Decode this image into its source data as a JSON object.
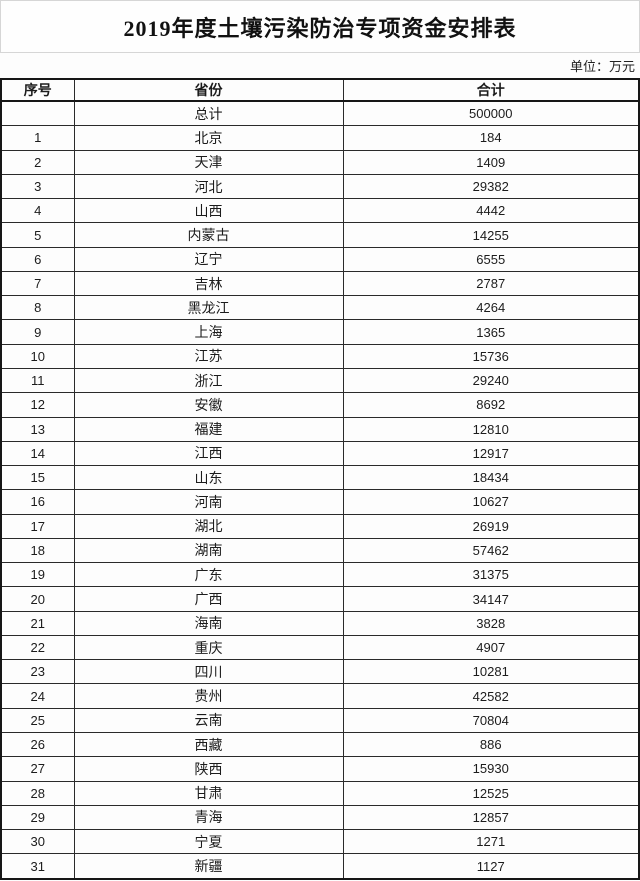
{
  "title": "2019年度土壤污染防治专项资金安排表",
  "unit_note": "单位：万元",
  "colors": {
    "table_border": "#161616",
    "title_box_border": "#d6d6d6",
    "text": "#1c1c1c",
    "background": "#fdfdfd"
  },
  "table": {
    "headers": [
      "序号",
      "省份",
      "合计"
    ],
    "total_row": {
      "index": "",
      "province": "总计",
      "amount": "500000"
    },
    "rows": [
      {
        "index": "1",
        "province": "北京",
        "amount": "184"
      },
      {
        "index": "2",
        "province": "天津",
        "amount": "1409"
      },
      {
        "index": "3",
        "province": "河北",
        "amount": "29382"
      },
      {
        "index": "4",
        "province": "山西",
        "amount": "4442"
      },
      {
        "index": "5",
        "province": "内蒙古",
        "amount": "14255"
      },
      {
        "index": "6",
        "province": "辽宁",
        "amount": "6555"
      },
      {
        "index": "7",
        "province": "吉林",
        "amount": "2787"
      },
      {
        "index": "8",
        "province": "黑龙江",
        "amount": "4264"
      },
      {
        "index": "9",
        "province": "上海",
        "amount": "1365"
      },
      {
        "index": "10",
        "province": "江苏",
        "amount": "15736"
      },
      {
        "index": "11",
        "province": "浙江",
        "amount": "29240"
      },
      {
        "index": "12",
        "province": "安徽",
        "amount": "8692"
      },
      {
        "index": "13",
        "province": "福建",
        "amount": "12810"
      },
      {
        "index": "14",
        "province": "江西",
        "amount": "12917"
      },
      {
        "index": "15",
        "province": "山东",
        "amount": "18434"
      },
      {
        "index": "16",
        "province": "河南",
        "amount": "10627"
      },
      {
        "index": "17",
        "province": "湖北",
        "amount": "26919"
      },
      {
        "index": "18",
        "province": "湖南",
        "amount": "57462"
      },
      {
        "index": "19",
        "province": "广东",
        "amount": "31375"
      },
      {
        "index": "20",
        "province": "广西",
        "amount": "34147"
      },
      {
        "index": "21",
        "province": "海南",
        "amount": "3828"
      },
      {
        "index": "22",
        "province": "重庆",
        "amount": "4907"
      },
      {
        "index": "23",
        "province": "四川",
        "amount": "10281"
      },
      {
        "index": "24",
        "province": "贵州",
        "amount": "42582"
      },
      {
        "index": "25",
        "province": "云南",
        "amount": "70804"
      },
      {
        "index": "26",
        "province": "西藏",
        "amount": "886"
      },
      {
        "index": "27",
        "province": "陕西",
        "amount": "15930"
      },
      {
        "index": "28",
        "province": "甘肃",
        "amount": "12525"
      },
      {
        "index": "29",
        "province": "青海",
        "amount": "12857"
      },
      {
        "index": "30",
        "province": "宁夏",
        "amount": "1271"
      },
      {
        "index": "31",
        "province": "新疆",
        "amount": "1127"
      }
    ]
  }
}
